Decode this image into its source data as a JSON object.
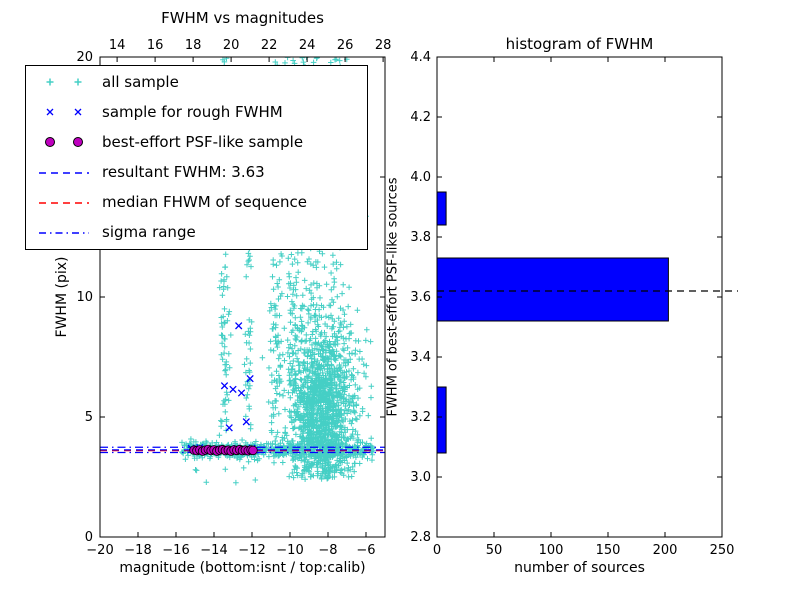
{
  "figure": {
    "background": "#ffffff"
  },
  "chart_data": [
    {
      "id": "scatter",
      "type": "scatter",
      "title": "FWHM vs magnitudes",
      "xlabel": "magnitude (bottom:isnt / top:calib)",
      "ylabel": "FWHM (pix)",
      "xlim": [
        -20,
        -5
      ],
      "top_xlim": [
        13.1,
        28.1
      ],
      "ylim": [
        0,
        20
      ],
      "xticks": [
        -20,
        -18,
        -16,
        -14,
        -12,
        -10,
        -8,
        -6
      ],
      "top_xticks": [
        14,
        16,
        18,
        20,
        22,
        24,
        26,
        28
      ],
      "yticks": [
        0,
        5,
        10,
        15,
        20
      ],
      "seed": 13,
      "colors": {
        "all": "#45cfc5",
        "rough": "#0000ff",
        "psf": "#bf00bf"
      },
      "legend": [
        {
          "label": "all sample",
          "marker": "plus",
          "color": "#45cfc5"
        },
        {
          "label": "sample for rough FWHM",
          "marker": "x",
          "color": "#0000ff"
        },
        {
          "label": "best-effort PSF-like sample",
          "marker": "circle",
          "color": "#bf00bf"
        },
        {
          "label": "resultant FWHM: 3.63",
          "marker": "dashed-line",
          "color": "#0000ff"
        },
        {
          "label": "median FHWM of sequence",
          "marker": "dashed-line",
          "color": "#ff0000"
        },
        {
          "label": "sigma range",
          "marker": "dashdot-line",
          "color": "#0000ff"
        }
      ],
      "resultant_fwhm": 3.63,
      "lines": [
        {
          "name": "sigma-lower-line",
          "y": 3.52,
          "style": "dashdot",
          "color": "#0000ff"
        },
        {
          "name": "sigma-upper-line",
          "y": 3.74,
          "style": "dashdot",
          "color": "#0000ff"
        },
        {
          "name": "median-sequence-line",
          "y": 3.6,
          "style": "dashed",
          "color": "#ff0000"
        },
        {
          "name": "resultant-fwhm-line",
          "y": 3.63,
          "style": "dashed",
          "color": "#0000ff"
        }
      ],
      "clusters": [
        {
          "n": 480,
          "x": {
            "dist": "uniform",
            "min": -15.7,
            "max": -5.6
          },
          "y": {
            "dist": "gauss",
            "mean": 3.62,
            "sd": 0.18,
            "min": 2.7,
            "max": 4.7
          }
        },
        {
          "n": 200,
          "x": {
            "dist": "uniform",
            "min": -15.2,
            "max": -11.6
          },
          "y": {
            "dist": "gauss",
            "mean": 3.62,
            "sd": 0.09
          }
        },
        {
          "n": 1350,
          "x": {
            "dist": "gauss",
            "mean": -8.3,
            "sd": 0.95,
            "min": -11.6,
            "max": -5.6
          },
          "y": {
            "dist": "gauss",
            "mean": 5.1,
            "sd": 1.9,
            "min": 2.4,
            "max": 13.5
          }
        },
        {
          "n": 330,
          "x": {
            "dist": "gauss",
            "mean": -8.6,
            "sd": 1.15,
            "min": -11.6,
            "max": -5.7
          },
          "y": {
            "dist": "uniform",
            "min": 7,
            "max": 20
          }
        },
        {
          "n": 110,
          "x": {
            "dist": "gauss",
            "mean": -13.45,
            "sd": 0.13
          },
          "y": {
            "dist": "uniform",
            "min": 4.2,
            "max": 20
          }
        },
        {
          "n": 45,
          "x": {
            "dist": "gauss",
            "mean": -12.15,
            "sd": 0.1
          },
          "y": {
            "dist": "uniform",
            "min": 4.5,
            "max": 13.5
          }
        },
        {
          "n": 130,
          "x": {
            "dist": "gauss",
            "mean": -10.75,
            "sd": 0.18
          },
          "y": {
            "dist": "uniform",
            "min": 4,
            "max": 20
          }
        },
        {
          "n": 85,
          "x": {
            "dist": "gauss",
            "mean": -9.8,
            "sd": 0.16
          },
          "y": {
            "dist": "uniform",
            "min": 6,
            "max": 20
          }
        },
        {
          "n": 10,
          "x": {
            "dist": "uniform",
            "min": -15.5,
            "max": -6.5
          },
          "y": {
            "dist": "uniform",
            "min": 2.2,
            "max": 2.9
          }
        }
      ],
      "rough_points": [
        [
          -15.2,
          3.7
        ],
        [
          -14.75,
          3.72
        ],
        [
          -14.1,
          3.62
        ],
        [
          -13.7,
          3.66
        ],
        [
          -13.45,
          6.3
        ],
        [
          -13.2,
          4.55
        ],
        [
          -13.0,
          6.15
        ],
        [
          -12.8,
          3.7
        ],
        [
          -12.7,
          8.8
        ],
        [
          -12.55,
          6.0
        ],
        [
          -12.3,
          4.8
        ],
        [
          -12.1,
          6.6
        ],
        [
          -12.0,
          3.7
        ],
        [
          -11.85,
          3.62
        ]
      ],
      "psf_points": [
        [
          -15.05,
          3.62
        ],
        [
          -14.9,
          3.6
        ],
        [
          -14.75,
          3.63
        ],
        [
          -14.6,
          3.58
        ],
        [
          -14.45,
          3.62
        ],
        [
          -14.3,
          3.65
        ],
        [
          -14.15,
          3.6
        ],
        [
          -14.0,
          3.63
        ],
        [
          -13.85,
          3.58
        ],
        [
          -13.7,
          3.62
        ],
        [
          -13.55,
          3.64
        ],
        [
          -13.4,
          3.6
        ],
        [
          -13.25,
          3.62
        ],
        [
          -13.1,
          3.58
        ],
        [
          -12.95,
          3.63
        ],
        [
          -12.8,
          3.61
        ],
        [
          -12.65,
          3.64
        ],
        [
          -12.5,
          3.6
        ],
        [
          -12.35,
          3.62
        ],
        [
          -12.2,
          3.59
        ],
        [
          -12.05,
          3.63
        ],
        [
          -11.95,
          3.61
        ]
      ]
    },
    {
      "id": "histogram",
      "type": "bar",
      "orientation": "horizontal",
      "title": "histogram of FWHM",
      "xlabel": "number of sources",
      "ylabel": "FWHM of best-effort PSF-like sources",
      "xlim": [
        0,
        250
      ],
      "ylim": [
        2.8,
        4.4
      ],
      "xticks": [
        0,
        50,
        100,
        150,
        200,
        250
      ],
      "yticks": [
        2.8,
        3.0,
        3.2,
        3.4,
        3.6,
        3.8,
        4.0,
        4.2,
        4.4
      ],
      "bar_color": "#0000ff",
      "bars": [
        {
          "y0": 3.08,
          "y1": 3.3,
          "value": 8
        },
        {
          "y0": 3.52,
          "y1": 3.73,
          "value": 203
        },
        {
          "y0": 3.84,
          "y1": 3.95,
          "value": 8
        }
      ],
      "median_line": {
        "y": 3.62,
        "style": "dashed",
        "color": "#000000"
      }
    }
  ]
}
